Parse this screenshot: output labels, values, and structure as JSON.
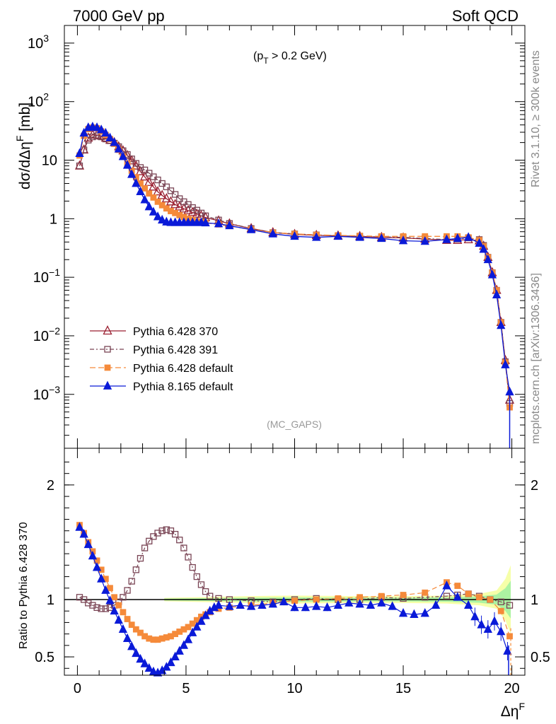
{
  "header": {
    "left": "7000 GeV pp",
    "right": "Soft QCD"
  },
  "side": {
    "rivet": "Rivet 3.1.10, ≥ 300k events",
    "mcplots": "mcplots.cern.ch [arXiv:1306.3436]"
  },
  "chart_data": [
    {
      "type": "line",
      "title": "",
      "annotation_parts": [
        "(p",
        "T",
        " > 0.2 GeV)"
      ],
      "analysis_label": "(MC_GAPS)",
      "ylabel_parts": [
        "dσ/dΔη",
        "F",
        " [mb]"
      ],
      "yscale": "log",
      "xlim": [
        -0.6,
        20.6
      ],
      "ylim": [
        0.00012,
        2000
      ],
      "y_ticks": [
        {
          "value": 1000,
          "base": "10",
          "exp": "3"
        },
        {
          "value": 100,
          "base": "10",
          "exp": "2"
        },
        {
          "value": 10,
          "base": "10",
          "exp": ""
        },
        {
          "value": 1,
          "base": "1",
          "exp": ""
        },
        {
          "value": 0.1,
          "base": "10",
          "exp": "−1"
        },
        {
          "value": 0.01,
          "base": "10",
          "exp": "−2"
        },
        {
          "value": 0.001,
          "base": "10",
          "exp": "−3"
        }
      ],
      "legend_position": "middle-left",
      "series": [
        {
          "name": "Pythia 6.428 370",
          "color": "#9a1f30",
          "marker": "triangle-open",
          "dash": "solid",
          "x": [
            0.1,
            0.3,
            0.5,
            0.7,
            0.9,
            1.1,
            1.3,
            1.5,
            1.7,
            1.9,
            2.1,
            2.3,
            2.5,
            2.7,
            2.9,
            3.1,
            3.3,
            3.5,
            3.7,
            3.9,
            4.1,
            4.3,
            4.5,
            4.7,
            4.9,
            5.1,
            5.3,
            5.5,
            5.7,
            5.9,
            6.5,
            7,
            8,
            9,
            10,
            11,
            12,
            13,
            14,
            15,
            16,
            17,
            17.5,
            18,
            18.5,
            18.7,
            18.9,
            19.1,
            19.3,
            19.5,
            19.7,
            19.9
          ],
          "values": [
            8,
            15,
            24,
            27,
            27,
            26,
            24,
            22,
            20,
            17,
            14.5,
            12,
            9.8,
            8,
            6.4,
            5.2,
            4.2,
            3.5,
            2.9,
            2.5,
            2.2,
            1.95,
            1.75,
            1.6,
            1.48,
            1.38,
            1.28,
            1.2,
            1.12,
            1.05,
            0.92,
            0.82,
            0.68,
            0.58,
            0.54,
            0.52,
            0.51,
            0.5,
            0.48,
            0.47,
            0.45,
            0.43,
            0.43,
            0.44,
            0.42,
            0.34,
            0.22,
            0.12,
            0.06,
            0.017,
            0.0038,
            0.0008
          ]
        },
        {
          "name": "Pythia 6.428 391",
          "color": "#7a4555",
          "marker": "square-open",
          "dash": "6,3,2,3",
          "x": [
            0.1,
            0.3,
            0.5,
            0.7,
            0.9,
            1.1,
            1.3,
            1.5,
            1.7,
            1.9,
            2.1,
            2.3,
            2.5,
            2.7,
            2.9,
            3.1,
            3.3,
            3.5,
            3.7,
            3.9,
            4.1,
            4.3,
            4.5,
            4.7,
            4.9,
            5.1,
            5.3,
            5.5,
            5.7,
            5.9,
            6.5,
            7,
            8,
            9,
            10,
            11,
            12,
            13,
            14,
            15,
            16,
            17,
            17.5,
            18,
            18.5,
            18.7,
            18.9,
            19.1,
            19.3,
            19.5,
            19.7,
            19.9
          ],
          "values": [
            8,
            15,
            22,
            25,
            26,
            25,
            23,
            21.5,
            19.5,
            17,
            14.5,
            12.5,
            10.5,
            8.8,
            7.5,
            6.8,
            6,
            5.2,
            4.6,
            4,
            3.5,
            3,
            2.6,
            2.2,
            1.95,
            1.75,
            1.55,
            1.4,
            1.25,
            1.12,
            0.95,
            0.83,
            0.68,
            0.58,
            0.55,
            0.53,
            0.51,
            0.5,
            0.49,
            0.48,
            0.46,
            0.44,
            0.45,
            0.47,
            0.44,
            0.35,
            0.22,
            0.12,
            0.06,
            0.017,
            0.0036,
            0.0007
          ]
        },
        {
          "name": "Pythia 6.428 default",
          "color": "#f58a3a",
          "marker": "square-filled",
          "dash": "8,4",
          "x": [
            0.1,
            0.3,
            0.5,
            0.7,
            0.9,
            1.1,
            1.3,
            1.5,
            1.7,
            1.9,
            2.1,
            2.3,
            2.5,
            2.7,
            2.9,
            3.1,
            3.3,
            3.5,
            3.7,
            3.9,
            4.1,
            4.3,
            4.5,
            4.7,
            4.9,
            5.1,
            5.3,
            5.5,
            5.7,
            5.9,
            6.5,
            7,
            8,
            9,
            10,
            11,
            12,
            13,
            14,
            15,
            16,
            17,
            17.5,
            18,
            18.5,
            18.7,
            18.9,
            19.1,
            19.3,
            19.5,
            19.7,
            19.9
          ],
          "values": [
            12,
            26,
            34,
            36,
            35,
            31,
            27,
            23,
            19,
            15,
            11.5,
            8.8,
            6.6,
            5.1,
            4,
            3.3,
            2.7,
            2.3,
            1.95,
            1.7,
            1.5,
            1.35,
            1.25,
            1.15,
            1.07,
            1.0,
            0.95,
            0.9,
            0.87,
            0.85,
            0.8,
            0.75,
            0.66,
            0.58,
            0.55,
            0.53,
            0.52,
            0.51,
            0.5,
            0.5,
            0.5,
            0.5,
            0.5,
            0.48,
            0.43,
            0.34,
            0.22,
            0.12,
            0.06,
            0.017,
            0.0035,
            0.0006
          ]
        },
        {
          "name": "Pythia 8.165 default",
          "color": "#0a1ad8",
          "marker": "triangle-filled",
          "dash": "solid",
          "x": [
            0.1,
            0.3,
            0.5,
            0.7,
            0.9,
            1.1,
            1.3,
            1.5,
            1.7,
            1.9,
            2.1,
            2.3,
            2.5,
            2.7,
            2.9,
            3.1,
            3.3,
            3.5,
            3.7,
            3.9,
            4.1,
            4.3,
            4.5,
            4.7,
            4.9,
            5.1,
            5.3,
            5.5,
            5.7,
            5.9,
            6.5,
            7,
            8,
            9,
            10,
            11,
            12,
            13,
            14,
            15,
            16,
            17,
            17.5,
            18,
            18.5,
            18.7,
            18.9,
            19.1,
            19.3,
            19.5,
            19.7,
            19.9
          ],
          "values": [
            13,
            29,
            36,
            37,
            36,
            33,
            29,
            24,
            20,
            15.5,
            11.5,
            8.2,
            5.7,
            4,
            2.9,
            2.1,
            1.6,
            1.3,
            1.08,
            0.95,
            0.88,
            0.86,
            0.86,
            0.86,
            0.86,
            0.86,
            0.86,
            0.86,
            0.86,
            0.85,
            0.82,
            0.76,
            0.65,
            0.55,
            0.5,
            0.48,
            0.5,
            0.48,
            0.46,
            0.42,
            0.41,
            0.44,
            0.46,
            0.48,
            0.38,
            0.3,
            0.2,
            0.11,
            0.05,
            0.015,
            0.0032,
            0.0011
          ]
        }
      ]
    },
    {
      "type": "line",
      "ylabel": "Ratio to Pythia 6.428 370",
      "xlabel_parts": [
        "Δη",
        "F"
      ],
      "xlim": [
        -0.6,
        20.6
      ],
      "ylim": [
        0.34,
        2.32
      ],
      "x_tick_labels": [
        "0",
        "5",
        "10",
        "15",
        "20"
      ],
      "y_tick_labels": [
        "2",
        "1",
        "0.5"
      ],
      "reference_line": 1,
      "series": [
        {
          "name": "Pythia 6.428 391",
          "color": "#7a4555",
          "marker": "square-open",
          "x": [
            0.1,
            0.3,
            0.5,
            0.7,
            0.9,
            1.1,
            1.3,
            1.5,
            1.7,
            1.9,
            2.1,
            2.3,
            2.5,
            2.7,
            2.9,
            3.1,
            3.3,
            3.5,
            3.7,
            3.9,
            4.1,
            4.3,
            4.5,
            4.7,
            4.9,
            5.1,
            5.3,
            5.5,
            5.7,
            5.9,
            6.1,
            6.5,
            7,
            8,
            9,
            10,
            11,
            12,
            13,
            14,
            15,
            16,
            17,
            17.5,
            18,
            18.5,
            19,
            19.5,
            19.9
          ],
          "values": [
            1.02,
            1.0,
            0.97,
            0.95,
            0.93,
            0.92,
            0.92,
            0.93,
            0.95,
            0.98,
            1.02,
            1.08,
            1.16,
            1.26,
            1.36,
            1.45,
            1.51,
            1.55,
            1.58,
            1.6,
            1.61,
            1.6,
            1.57,
            1.52,
            1.45,
            1.37,
            1.28,
            1.2,
            1.13,
            1.07,
            1.03,
            1.01,
            1.0,
            0.99,
            0.98,
            1.0,
            1.01,
            1.0,
            1.0,
            1.02,
            1.01,
            1.02,
            1.03,
            1.04,
            1.05,
            1.03,
            1.0,
            0.98,
            0.95
          ]
        },
        {
          "name": "Pythia 6.428 default",
          "color": "#f58a3a",
          "marker": "square-filled",
          "x": [
            0.1,
            0.3,
            0.5,
            0.7,
            0.9,
            1.1,
            1.3,
            1.5,
            1.7,
            1.9,
            2.1,
            2.3,
            2.5,
            2.7,
            2.9,
            3.1,
            3.3,
            3.5,
            3.7,
            3.9,
            4.1,
            4.3,
            4.5,
            4.7,
            4.9,
            5.1,
            5.3,
            5.5,
            5.7,
            5.9,
            6.1,
            6.5,
            7,
            8,
            9,
            10,
            11,
            12,
            13,
            14,
            15,
            16,
            17,
            17.5,
            18,
            18.5,
            19,
            19.5,
            19.9
          ],
          "values": [
            1.65,
            1.58,
            1.5,
            1.42,
            1.34,
            1.26,
            1.18,
            1.1,
            1.02,
            0.95,
            0.89,
            0.83,
            0.78,
            0.74,
            0.71,
            0.68,
            0.66,
            0.65,
            0.65,
            0.66,
            0.67,
            0.68,
            0.7,
            0.72,
            0.74,
            0.76,
            0.79,
            0.82,
            0.85,
            0.87,
            0.89,
            0.92,
            0.93,
            0.95,
            0.97,
            0.99,
            1.0,
            1.01,
            1.02,
            1.03,
            1.04,
            1.06,
            1.15,
            1.12,
            1.05,
            1.02,
            1.0,
            0.9,
            0.68
          ]
        },
        {
          "name": "Pythia 8.165 default",
          "color": "#0a1ad8",
          "marker": "triangle-filled",
          "x": [
            0.1,
            0.3,
            0.5,
            0.7,
            0.9,
            1.1,
            1.3,
            1.5,
            1.7,
            1.9,
            2.1,
            2.3,
            2.5,
            2.7,
            2.9,
            3.1,
            3.3,
            3.5,
            3.7,
            3.9,
            4.1,
            4.3,
            4.5,
            4.7,
            4.9,
            5.1,
            5.3,
            5.5,
            5.7,
            5.9,
            6.1,
            6.3,
            6.5,
            7,
            7.5,
            8,
            8.5,
            9,
            9.5,
            10,
            10.5,
            11,
            11.5,
            12,
            12.5,
            13,
            13.5,
            14,
            14.5,
            15,
            15.5,
            16,
            16.5,
            17,
            17.5,
            18,
            18.3,
            18.6,
            18.9,
            19.2,
            19.5,
            19.8
          ],
          "values": [
            1.63,
            1.57,
            1.48,
            1.38,
            1.28,
            1.18,
            1.08,
            0.99,
            0.9,
            0.82,
            0.74,
            0.66,
            0.59,
            0.53,
            0.48,
            0.44,
            0.4,
            0.37,
            0.36,
            0.38,
            0.41,
            0.45,
            0.5,
            0.55,
            0.6,
            0.65,
            0.71,
            0.76,
            0.81,
            0.86,
            0.9,
            0.93,
            0.95,
            0.94,
            0.95,
            0.94,
            0.95,
            0.96,
            0.98,
            0.93,
            0.93,
            0.94,
            0.93,
            0.95,
            0.97,
            0.96,
            0.95,
            0.97,
            0.94,
            0.88,
            0.87,
            0.88,
            0.95,
            1.12,
            1.02,
            0.95,
            0.85,
            0.78,
            0.74,
            0.81,
            0.72,
            0.55
          ]
        }
      ]
    }
  ]
}
